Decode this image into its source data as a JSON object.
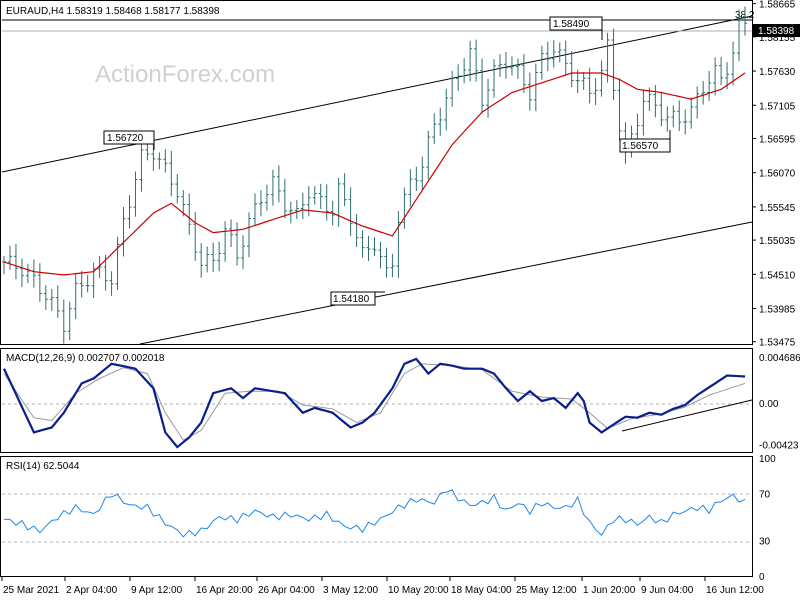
{
  "watermark": "ActionForex.com",
  "colors": {
    "candles": "#2f6f6f",
    "ma": "#cc0000",
    "macd": "#0a1e8c",
    "signal": "#999999",
    "rsi": "#1e88e5",
    "channel": "#000000",
    "price_box": "#000000",
    "grid": "#b0b0b0"
  },
  "chart_data": [
    {
      "type": "candlestick",
      "title": "EURAUD,H4  1.58319 1.58468 1.58177 1.58398",
      "yticks": [
        "1.58665",
        "1.58398",
        "1.58155",
        "1.57630",
        "1.57105",
        "1.56595",
        "1.56070",
        "1.55545",
        "1.55035",
        "1.54510",
        "1.53985",
        "1.53475"
      ],
      "current_price": "1.58398",
      "fib_label": "38.2",
      "annotations": [
        "1.58490",
        "1.56720",
        "1.56570",
        "1.54180"
      ],
      "xticks": [
        "25 Mar 2021",
        "2 Apr 04:00",
        "9 Apr 12:00",
        "16 Apr 20:00",
        "26 Apr 04:00",
        "3 May 12:00",
        "10 May 20:00",
        "18 May 04:00",
        "25 May 12:00",
        "1 Jun 20:00",
        "9 Jun 04:00",
        "16 Jun 12:00"
      ],
      "ylim": [
        1.5344,
        1.5869
      ],
      "close_path": [
        [
          0,
          1.547
        ],
        [
          3,
          1.546
        ],
        [
          7,
          1.542
        ],
        [
          10,
          1.5375
        ],
        [
          12,
          1.5425
        ],
        [
          15,
          1.5455
        ],
        [
          18,
          1.5445
        ],
        [
          20,
          1.553
        ],
        [
          22,
          1.56
        ],
        [
          23,
          1.563
        ],
        [
          25,
          1.564
        ],
        [
          27,
          1.561
        ],
        [
          29,
          1.558
        ],
        [
          31,
          1.552
        ],
        [
          33,
          1.547
        ],
        [
          35,
          1.547
        ],
        [
          37,
          1.552
        ],
        [
          39,
          1.548
        ],
        [
          41,
          1.553
        ],
        [
          43,
          1.557
        ],
        [
          45,
          1.559
        ],
        [
          47,
          1.556
        ],
        [
          49,
          1.554
        ],
        [
          51,
          1.558
        ],
        [
          53,
          1.556
        ],
        [
          55,
          1.555
        ],
        [
          56,
          1.558
        ],
        [
          58,
          1.554
        ],
        [
          60,
          1.548
        ],
        [
          62,
          1.55
        ],
        [
          64,
          1.545
        ],
        [
          65,
          1.547
        ],
        [
          66,
          1.554
        ],
        [
          68,
          1.559
        ],
        [
          70,
          1.562
        ],
        [
          72,
          1.568
        ],
        [
          74,
          1.572
        ],
        [
          76,
          1.576
        ],
        [
          78,
          1.579
        ],
        [
          80,
          1.572
        ],
        [
          82,
          1.576
        ],
        [
          84,
          1.578
        ],
        [
          86,
          1.576
        ],
        [
          88,
          1.573
        ],
        [
          90,
          1.578
        ],
        [
          92,
          1.58
        ],
        [
          94,
          1.577
        ],
        [
          96,
          1.575
        ],
        [
          98,
          1.573
        ],
        [
          100,
          1.576
        ],
        [
          101,
          1.58
        ],
        [
          103,
          1.568
        ],
        [
          104,
          1.563
        ],
        [
          105,
          1.566
        ],
        [
          107,
          1.572
        ],
        [
          109,
          1.571
        ],
        [
          111,
          1.569
        ],
        [
          113,
          1.569
        ],
        [
          115,
          1.57
        ],
        [
          117,
          1.574
        ],
        [
          119,
          1.576
        ],
        [
          120,
          1.575
        ],
        [
          122,
          1.579
        ],
        [
          123,
          1.5835
        ],
        [
          124,
          1.584
        ]
      ],
      "ma_path": [
        [
          0,
          1.547
        ],
        [
          5,
          1.5455
        ],
        [
          10,
          1.545
        ],
        [
          15,
          1.5455
        ],
        [
          20,
          1.55
        ],
        [
          25,
          1.5545
        ],
        [
          28,
          1.556
        ],
        [
          32,
          1.553
        ],
        [
          35,
          1.5515
        ],
        [
          40,
          1.552
        ],
        [
          45,
          1.5535
        ],
        [
          50,
          1.555
        ],
        [
          55,
          1.5545
        ],
        [
          60,
          1.5525
        ],
        [
          65,
          1.551
        ],
        [
          70,
          1.558
        ],
        [
          75,
          1.565
        ],
        [
          80,
          1.57
        ],
        [
          85,
          1.573
        ],
        [
          90,
          1.5745
        ],
        [
          95,
          1.576
        ],
        [
          100,
          1.576
        ],
        [
          103,
          1.575
        ],
        [
          106,
          1.5735
        ],
        [
          110,
          1.573
        ],
        [
          115,
          1.572
        ],
        [
          120,
          1.5735
        ],
        [
          124,
          1.576
        ]
      ]
    },
    {
      "type": "line",
      "title": "MACD(12,26,9) 0.002707 0.002018",
      "yticks": [
        "0.004686",
        "0.00",
        "-0.00423"
      ],
      "macd_path": [
        [
          0,
          0.0035
        ],
        [
          5,
          -0.003
        ],
        [
          8,
          -0.0025
        ],
        [
          10,
          -0.001
        ],
        [
          13,
          0.002
        ],
        [
          15,
          0.0025
        ],
        [
          18,
          0.004
        ],
        [
          22,
          0.0035
        ],
        [
          25,
          0.0015
        ],
        [
          27,
          -0.003
        ],
        [
          29,
          -0.0045
        ],
        [
          31,
          -0.0035
        ],
        [
          33,
          -0.002
        ],
        [
          35,
          0.001
        ],
        [
          38,
          0.0015
        ],
        [
          40,
          0.0005
        ],
        [
          42,
          0.0015
        ],
        [
          45,
          0.0012
        ],
        [
          47,
          0.001
        ],
        [
          50,
          -0.001
        ],
        [
          52,
          -0.0005
        ],
        [
          55,
          -0.001
        ],
        [
          58,
          -0.0025
        ],
        [
          60,
          -0.002
        ],
        [
          62,
          -0.001
        ],
        [
          65,
          0.0015
        ],
        [
          67,
          0.004
        ],
        [
          69,
          0.0045
        ],
        [
          71,
          0.003
        ],
        [
          73,
          0.004
        ],
        [
          75,
          0.0038
        ],
        [
          77,
          0.0035
        ],
        [
          80,
          0.0035
        ],
        [
          82,
          0.003
        ],
        [
          84,
          0.0015
        ],
        [
          86,
          0.0002
        ],
        [
          88,
          0.0012
        ],
        [
          90,
          0.0002
        ],
        [
          92,
          0.0005
        ],
        [
          94,
          -0.0005
        ],
        [
          96,
          0.001
        ],
        [
          97,
          0.0002
        ],
        [
          98,
          -0.002
        ],
        [
          100,
          -0.003
        ],
        [
          102,
          -0.0022
        ],
        [
          104,
          -0.0014
        ],
        [
          106,
          -0.0015
        ],
        [
          108,
          -0.001
        ],
        [
          110,
          -0.0012
        ],
        [
          112,
          -0.0006
        ],
        [
          114,
          -0.0002
        ],
        [
          116,
          0.0008
        ],
        [
          117,
          0.0012
        ],
        [
          119,
          0.002
        ],
        [
          121,
          0.0028
        ],
        [
          124,
          0.0027
        ]
      ],
      "signal_path": [
        [
          0,
          0.003
        ],
        [
          5,
          -0.0015
        ],
        [
          8,
          -0.0018
        ],
        [
          12,
          0.001
        ],
        [
          16,
          0.0025
        ],
        [
          20,
          0.0036
        ],
        [
          24,
          0.003
        ],
        [
          27,
          -0.001
        ],
        [
          30,
          -0.0038
        ],
        [
          33,
          -0.0028
        ],
        [
          37,
          0.001
        ],
        [
          41,
          0.0012
        ],
        [
          46,
          0.0012
        ],
        [
          50,
          -0.0002
        ],
        [
          55,
          -0.0006
        ],
        [
          59,
          -0.002
        ],
        [
          63,
          -0.001
        ],
        [
          67,
          0.003
        ],
        [
          70,
          0.004
        ],
        [
          75,
          0.0038
        ],
        [
          80,
          0.0034
        ],
        [
          85,
          0.0012
        ],
        [
          90,
          0.0006
        ],
        [
          95,
          0.0004
        ],
        [
          98,
          -0.001
        ],
        [
          101,
          -0.0026
        ],
        [
          105,
          -0.0016
        ],
        [
          110,
          -0.0011
        ],
        [
          114,
          -0.0004
        ],
        [
          118,
          0.0008
        ],
        [
          124,
          0.002
        ]
      ]
    },
    {
      "type": "line",
      "title": "RSI(14) 62.5044",
      "yticks": [
        "100",
        "70",
        "30",
        "0"
      ],
      "ylim": [
        0,
        100
      ],
      "rsi_path": [
        [
          0,
          48
        ],
        [
          3,
          44
        ],
        [
          6,
          38
        ],
        [
          9,
          50
        ],
        [
          12,
          58
        ],
        [
          15,
          52
        ],
        [
          18,
          70
        ],
        [
          21,
          60
        ],
        [
          24,
          58
        ],
        [
          27,
          45
        ],
        [
          30,
          35
        ],
        [
          33,
          38
        ],
        [
          36,
          50
        ],
        [
          39,
          48
        ],
        [
          42,
          55
        ],
        [
          45,
          50
        ],
        [
          48,
          52
        ],
        [
          51,
          48
        ],
        [
          54,
          52
        ],
        [
          57,
          42
        ],
        [
          60,
          40
        ],
        [
          63,
          48
        ],
        [
          66,
          58
        ],
        [
          69,
          65
        ],
        [
          72,
          62
        ],
        [
          74,
          74
        ],
        [
          76,
          66
        ],
        [
          78,
          60
        ],
        [
          80,
          62
        ],
        [
          82,
          66
        ],
        [
          84,
          55
        ],
        [
          86,
          62
        ],
        [
          88,
          55
        ],
        [
          90,
          62
        ],
        [
          92,
          58
        ],
        [
          94,
          58
        ],
        [
          96,
          64
        ],
        [
          98,
          45
        ],
        [
          100,
          35
        ],
        [
          102,
          48
        ],
        [
          104,
          48
        ],
        [
          106,
          44
        ],
        [
          108,
          50
        ],
        [
          110,
          45
        ],
        [
          112,
          52
        ],
        [
          114,
          55
        ],
        [
          116,
          58
        ],
        [
          118,
          56
        ],
        [
          120,
          64
        ],
        [
          122,
          68
        ],
        [
          124,
          62
        ]
      ]
    }
  ]
}
